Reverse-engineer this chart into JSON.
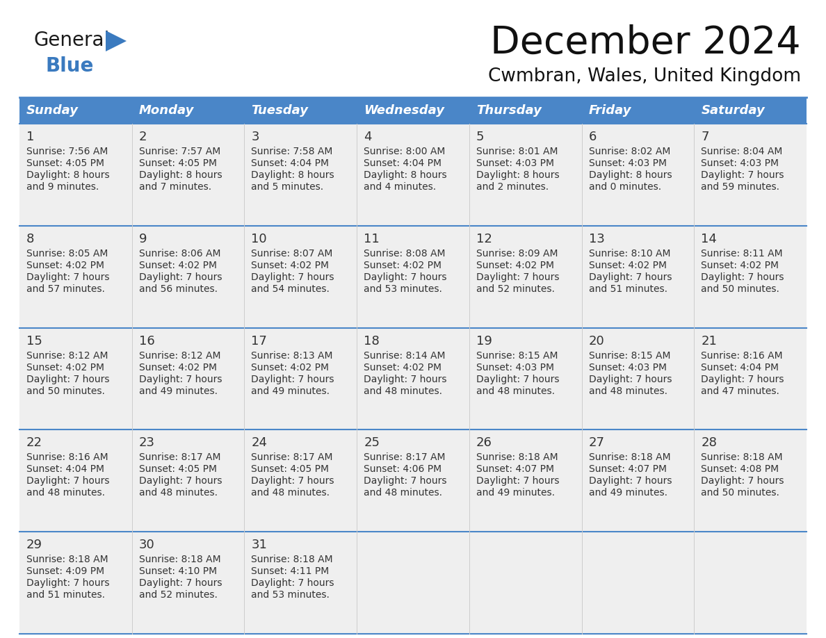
{
  "title": "December 2024",
  "subtitle": "Cwmbran, Wales, United Kingdom",
  "header_color": "#4a86c8",
  "header_text_color": "#ffffff",
  "row_bg_color": "#efefef",
  "border_color": "#4a86c8",
  "grid_color": "#bbbbbb",
  "text_color": "#333333",
  "days_of_week": [
    "Sunday",
    "Monday",
    "Tuesday",
    "Wednesday",
    "Thursday",
    "Friday",
    "Saturday"
  ],
  "weeks": [
    [
      {
        "day": 1,
        "sunrise": "7:56 AM",
        "sunset": "4:05 PM",
        "daylight_line1": "8 hours",
        "daylight_line2": "and 9 minutes."
      },
      {
        "day": 2,
        "sunrise": "7:57 AM",
        "sunset": "4:05 PM",
        "daylight_line1": "8 hours",
        "daylight_line2": "and 7 minutes."
      },
      {
        "day": 3,
        "sunrise": "7:58 AM",
        "sunset": "4:04 PM",
        "daylight_line1": "8 hours",
        "daylight_line2": "and 5 minutes."
      },
      {
        "day": 4,
        "sunrise": "8:00 AM",
        "sunset": "4:04 PM",
        "daylight_line1": "8 hours",
        "daylight_line2": "and 4 minutes."
      },
      {
        "day": 5,
        "sunrise": "8:01 AM",
        "sunset": "4:03 PM",
        "daylight_line1": "8 hours",
        "daylight_line2": "and 2 minutes."
      },
      {
        "day": 6,
        "sunrise": "8:02 AM",
        "sunset": "4:03 PM",
        "daylight_line1": "8 hours",
        "daylight_line2": "and 0 minutes."
      },
      {
        "day": 7,
        "sunrise": "8:04 AM",
        "sunset": "4:03 PM",
        "daylight_line1": "7 hours",
        "daylight_line2": "and 59 minutes."
      }
    ],
    [
      {
        "day": 8,
        "sunrise": "8:05 AM",
        "sunset": "4:02 PM",
        "daylight_line1": "7 hours",
        "daylight_line2": "and 57 minutes."
      },
      {
        "day": 9,
        "sunrise": "8:06 AM",
        "sunset": "4:02 PM",
        "daylight_line1": "7 hours",
        "daylight_line2": "and 56 minutes."
      },
      {
        "day": 10,
        "sunrise": "8:07 AM",
        "sunset": "4:02 PM",
        "daylight_line1": "7 hours",
        "daylight_line2": "and 54 minutes."
      },
      {
        "day": 11,
        "sunrise": "8:08 AM",
        "sunset": "4:02 PM",
        "daylight_line1": "7 hours",
        "daylight_line2": "and 53 minutes."
      },
      {
        "day": 12,
        "sunrise": "8:09 AM",
        "sunset": "4:02 PM",
        "daylight_line1": "7 hours",
        "daylight_line2": "and 52 minutes."
      },
      {
        "day": 13,
        "sunrise": "8:10 AM",
        "sunset": "4:02 PM",
        "daylight_line1": "7 hours",
        "daylight_line2": "and 51 minutes."
      },
      {
        "day": 14,
        "sunrise": "8:11 AM",
        "sunset": "4:02 PM",
        "daylight_line1": "7 hours",
        "daylight_line2": "and 50 minutes."
      }
    ],
    [
      {
        "day": 15,
        "sunrise": "8:12 AM",
        "sunset": "4:02 PM",
        "daylight_line1": "7 hours",
        "daylight_line2": "and 50 minutes."
      },
      {
        "day": 16,
        "sunrise": "8:12 AM",
        "sunset": "4:02 PM",
        "daylight_line1": "7 hours",
        "daylight_line2": "and 49 minutes."
      },
      {
        "day": 17,
        "sunrise": "8:13 AM",
        "sunset": "4:02 PM",
        "daylight_line1": "7 hours",
        "daylight_line2": "and 49 minutes."
      },
      {
        "day": 18,
        "sunrise": "8:14 AM",
        "sunset": "4:02 PM",
        "daylight_line1": "7 hours",
        "daylight_line2": "and 48 minutes."
      },
      {
        "day": 19,
        "sunrise": "8:15 AM",
        "sunset": "4:03 PM",
        "daylight_line1": "7 hours",
        "daylight_line2": "and 48 minutes."
      },
      {
        "day": 20,
        "sunrise": "8:15 AM",
        "sunset": "4:03 PM",
        "daylight_line1": "7 hours",
        "daylight_line2": "and 48 minutes."
      },
      {
        "day": 21,
        "sunrise": "8:16 AM",
        "sunset": "4:04 PM",
        "daylight_line1": "7 hours",
        "daylight_line2": "and 47 minutes."
      }
    ],
    [
      {
        "day": 22,
        "sunrise": "8:16 AM",
        "sunset": "4:04 PM",
        "daylight_line1": "7 hours",
        "daylight_line2": "and 48 minutes."
      },
      {
        "day": 23,
        "sunrise": "8:17 AM",
        "sunset": "4:05 PM",
        "daylight_line1": "7 hours",
        "daylight_line2": "and 48 minutes."
      },
      {
        "day": 24,
        "sunrise": "8:17 AM",
        "sunset": "4:05 PM",
        "daylight_line1": "7 hours",
        "daylight_line2": "and 48 minutes."
      },
      {
        "day": 25,
        "sunrise": "8:17 AM",
        "sunset": "4:06 PM",
        "daylight_line1": "7 hours",
        "daylight_line2": "and 48 minutes."
      },
      {
        "day": 26,
        "sunrise": "8:18 AM",
        "sunset": "4:07 PM",
        "daylight_line1": "7 hours",
        "daylight_line2": "and 49 minutes."
      },
      {
        "day": 27,
        "sunrise": "8:18 AM",
        "sunset": "4:07 PM",
        "daylight_line1": "7 hours",
        "daylight_line2": "and 49 minutes."
      },
      {
        "day": 28,
        "sunrise": "8:18 AM",
        "sunset": "4:08 PM",
        "daylight_line1": "7 hours",
        "daylight_line2": "and 50 minutes."
      }
    ],
    [
      {
        "day": 29,
        "sunrise": "8:18 AM",
        "sunset": "4:09 PM",
        "daylight_line1": "7 hours",
        "daylight_line2": "and 51 minutes."
      },
      {
        "day": 30,
        "sunrise": "8:18 AM",
        "sunset": "4:10 PM",
        "daylight_line1": "7 hours",
        "daylight_line2": "and 52 minutes."
      },
      {
        "day": 31,
        "sunrise": "8:18 AM",
        "sunset": "4:11 PM",
        "daylight_line1": "7 hours",
        "daylight_line2": "and 53 minutes."
      },
      null,
      null,
      null,
      null
    ]
  ]
}
